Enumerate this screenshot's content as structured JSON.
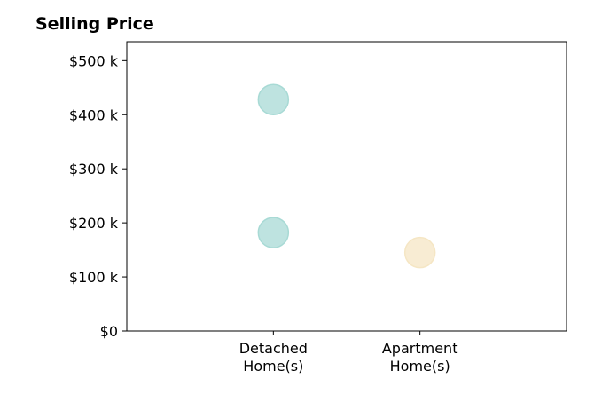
{
  "chart_data": {
    "type": "scatter",
    "title": "Selling Price",
    "categories": [
      "Detached\nHome(s)",
      "Apartment\nHome(s)"
    ],
    "y_tick_labels": [
      "$0",
      "$100 k",
      "$200 k",
      "$300 k",
      "$400 k",
      "$500 k"
    ],
    "y_ticks": [
      0,
      100000,
      200000,
      300000,
      400000,
      500000
    ],
    "ylim": [
      0,
      535000
    ],
    "xlim": [
      0,
      3
    ],
    "grid": false,
    "series": [
      {
        "category": "Detached\nHome(s)",
        "values": [
          428000,
          182000
        ],
        "color": "#a8dad5"
      },
      {
        "category": "Apartment\nHome(s)",
        "values": [
          145000
        ],
        "color": "#f5e6c4"
      }
    ]
  }
}
